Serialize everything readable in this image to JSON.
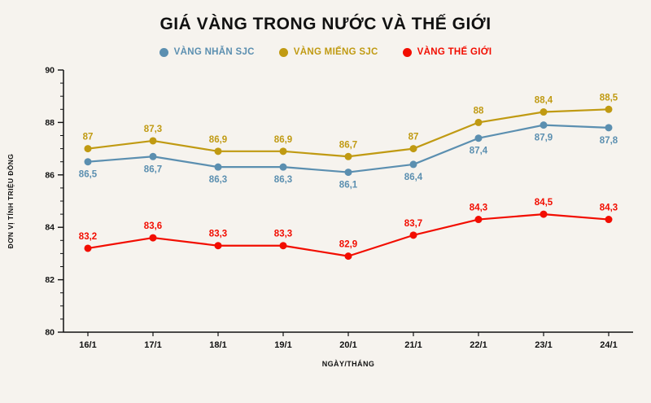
{
  "title": "GIÁ VÀNG TRONG NƯỚC VÀ THẾ GIỚI",
  "chart_data": {
    "type": "line",
    "categories": [
      "16/1",
      "17/1",
      "18/1",
      "19/1",
      "20/1",
      "21/1",
      "22/1",
      "23/1",
      "24/1"
    ],
    "xlabel": "NGÀY/THÁNG",
    "ylabel": "ĐƠN VỊ TÍNH TRIỆU ĐỒNG",
    "ylim": [
      80,
      90
    ],
    "yticks": [
      80,
      82,
      84,
      86,
      88,
      90
    ],
    "minor_tick_step": 0.5,
    "grid": false,
    "legend_position": "top",
    "axis_color": "#111111",
    "background_color": "#f6f3ee",
    "series": [
      {
        "name": "VÀNG NHẪN SJC",
        "color": "#5b8fb0",
        "values": [
          86.5,
          86.7,
          86.3,
          86.3,
          86.1,
          86.4,
          87.4,
          87.9,
          87.8
        ],
        "labels": [
          "86,5",
          "86,7",
          "86,3",
          "86,3",
          "86,1",
          "86,4",
          "87,4",
          "87,9",
          "87,8"
        ],
        "label_position": "below"
      },
      {
        "name": "VÀNG MIẾNG SJC",
        "color": "#c09a12",
        "values": [
          87.0,
          87.3,
          86.9,
          86.9,
          86.7,
          87.0,
          88.0,
          88.4,
          88.5
        ],
        "labels": [
          "87",
          "87,3",
          "86,9",
          "86,9",
          "86,7",
          "87",
          "88",
          "88,4",
          "88,5"
        ],
        "label_position": "above"
      },
      {
        "name": "VÀNG THẾ GIỚI",
        "color": "#f20d00",
        "values": [
          83.2,
          83.6,
          83.3,
          83.3,
          82.9,
          83.7,
          84.3,
          84.5,
          84.3
        ],
        "labels": [
          "83,2",
          "83,6",
          "83,3",
          "83,3",
          "82,9",
          "83,7",
          "84,3",
          "84,5",
          "84,3"
        ],
        "label_position": "above"
      }
    ]
  }
}
